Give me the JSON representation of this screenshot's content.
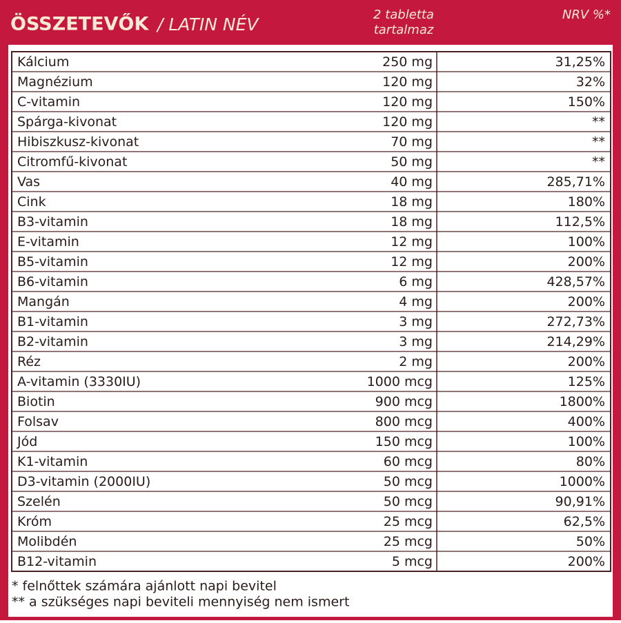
{
  "header": {
    "title": "ÖSSZETEVŐK",
    "subtitle": "/ LATIN NÉV",
    "amount_header": [
      "2 tabletta",
      "tartalmaz"
    ],
    "nrv_header": "NRV %*"
  },
  "table": {
    "rows": [
      [
        "Kálcium",
        "250 mg",
        "31,25%"
      ],
      [
        "Magnézium",
        "120 mg",
        "32%"
      ],
      [
        "C-vitamin",
        "120 mg",
        "150%"
      ],
      [
        "Spárga-kivonat",
        "120 mg",
        "**"
      ],
      [
        "Hibiszkusz-kivonat",
        "70 mg",
        "**"
      ],
      [
        "Citromfű-kivonat",
        "50 mg",
        "**"
      ],
      [
        "Vas",
        "40 mg",
        "285,71%"
      ],
      [
        "Cink",
        "18 mg",
        "180%"
      ],
      [
        "B3-vitamin",
        "18 mg",
        "112,5%"
      ],
      [
        "E-vitamin",
        "12 mg",
        "100%"
      ],
      [
        "B5-vitamin",
        "12 mg",
        "200%"
      ],
      [
        "B6-vitamin",
        "6 mg",
        "428,57%"
      ],
      [
        "Mangán",
        "4 mg",
        "200%"
      ],
      [
        "B1-vitamin",
        "3 mg",
        "272,73%"
      ],
      [
        "B2-vitamin",
        "3 mg",
        "214,29%"
      ],
      [
        "Réz",
        "2 mg",
        "200%"
      ],
      [
        "A-vitamin (3330IU)",
        "1000 mcg",
        "125%"
      ],
      [
        "Biotin",
        "900 mcg",
        "1800%"
      ],
      [
        "Folsav",
        "800 mcg",
        "400%"
      ],
      [
        "Jód",
        "150 mcg",
        "100%"
      ],
      [
        "K1-vitamin",
        "60 mcg",
        "80%"
      ],
      [
        "D3-vitamin (2000IU)",
        "50 mcg",
        "1000%"
      ],
      [
        "Szelén",
        "50 mcg",
        "90,91%"
      ],
      [
        "Króm",
        "25 mcg",
        "62,5%"
      ],
      [
        "Molibdén",
        "25 mcg",
        "50%"
      ],
      [
        "B12-vitamin",
        "5 mcg",
        "200%"
      ]
    ]
  },
  "footnotes": [
    "* felnőttek számára ajánlott napi bevitel",
    "** a szükséges napi beviteli mennyiség nem ismert"
  ]
}
